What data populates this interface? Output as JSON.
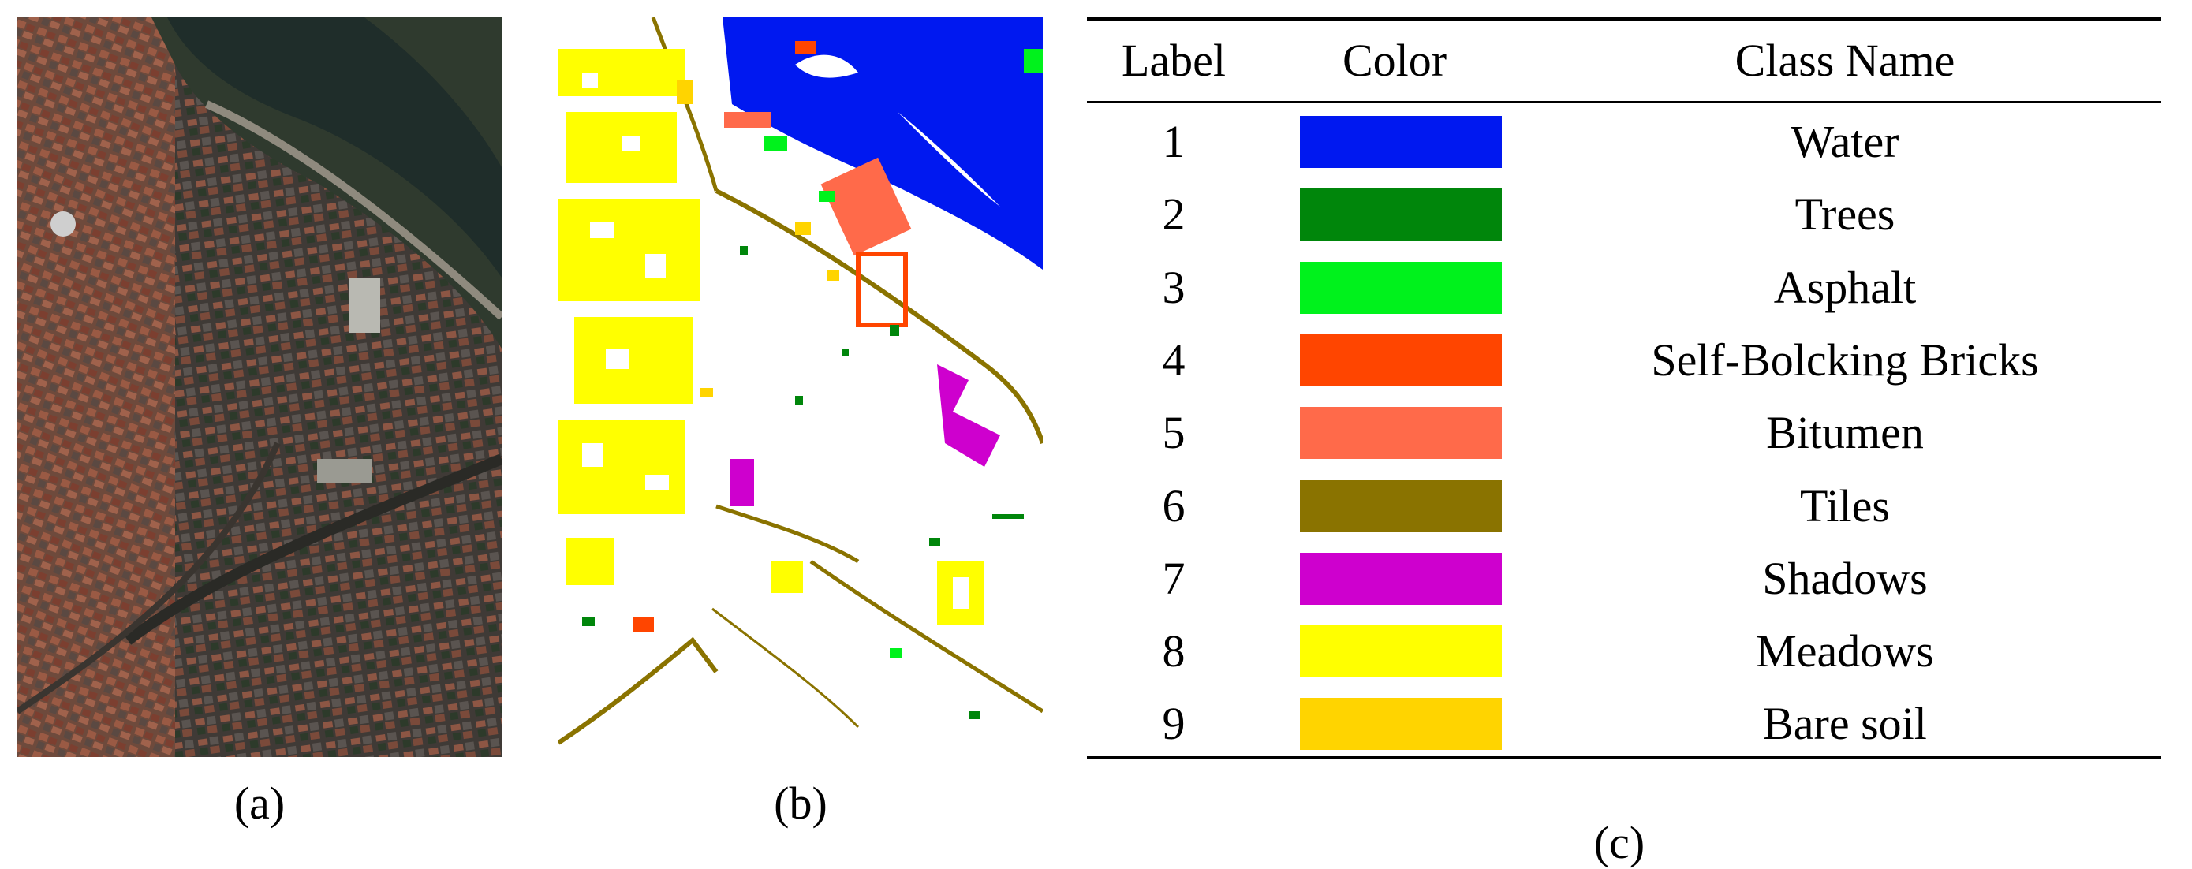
{
  "captions": {
    "a": "(a)",
    "b": "(b)",
    "c": "(c)"
  },
  "legend": {
    "headers": {
      "label": "Label",
      "color": "Color",
      "name": "Class Name"
    },
    "rows": [
      {
        "label": "1",
        "name": "Water",
        "color": "#0018F0"
      },
      {
        "label": "2",
        "name": "Trees",
        "color": "#00860B"
      },
      {
        "label": "3",
        "name": "Asphalt",
        "color": "#00F21C"
      },
      {
        "label": "4",
        "name": "Self-Bolcking Bricks",
        "color": "#FF4500"
      },
      {
        "label": "5",
        "name": "Bitumen",
        "color": "#FF6A4A"
      },
      {
        "label": "6",
        "name": "Tiles",
        "color": "#8A7300"
      },
      {
        "label": "7",
        "name": "Shadows",
        "color": "#CE00CE"
      },
      {
        "label": "8",
        "name": "Meadows",
        "color": "#FFFF00"
      },
      {
        "label": "9",
        "name": "Bare soil",
        "color": "#FFD400"
      }
    ]
  }
}
